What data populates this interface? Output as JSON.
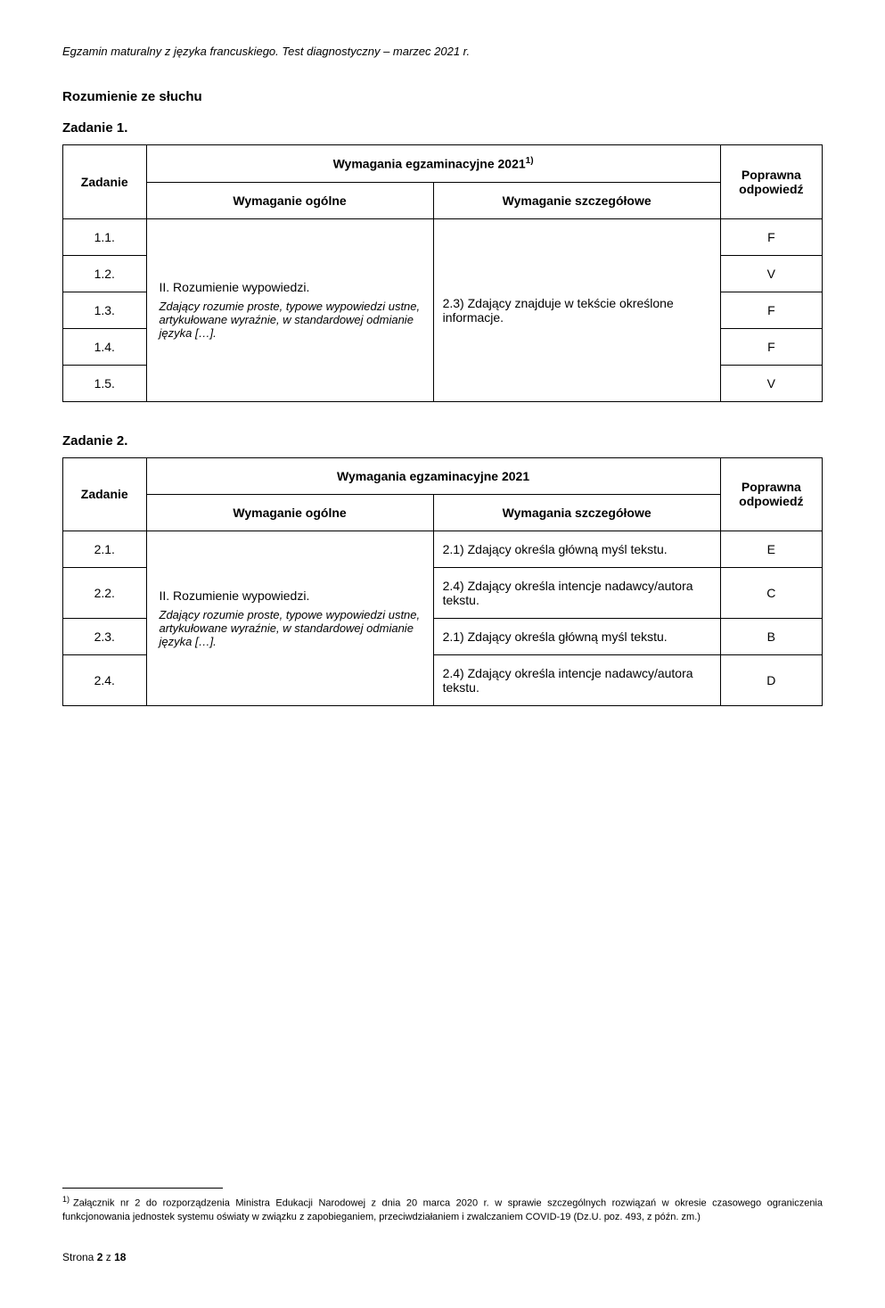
{
  "header_italic": "Egzamin maturalny z języka francuskiego. Test diagnostyczny – marzec 2021 r.",
  "section_title": "Rozumienie ze słuchu",
  "task1": {
    "title": "Zadanie 1.",
    "head_zadanie": "Zadanie",
    "head_wymagania": "Wymagania egzaminacyjne 2021",
    "head_wymagania_sup": "1)",
    "head_poprawna": "Poprawna odpowiedź",
    "head_ogolne": "Wymaganie ogólne",
    "head_szczeg": "Wymaganie szczegółowe",
    "ogolne_main": "II. Rozumienie wypowiedzi.",
    "ogolne_italic": "Zdający rozumie proste, typowe wypowiedzi ustne, artykułowane wyraźnie, w standardowej odmianie języka […].",
    "szczeg": "2.3) Zdający znajduje w tekście określone informacje.",
    "rows": [
      {
        "num": "1.1.",
        "ans": "F"
      },
      {
        "num": "1.2.",
        "ans": "V"
      },
      {
        "num": "1.3.",
        "ans": "F"
      },
      {
        "num": "1.4.",
        "ans": "F"
      },
      {
        "num": "1.5.",
        "ans": "V"
      }
    ]
  },
  "task2": {
    "title": "Zadanie 2.",
    "head_zadanie": "Zadanie",
    "head_wymagania": "Wymagania egzaminacyjne 2021",
    "head_poprawna": "Poprawna odpowiedź",
    "head_ogolne": "Wymaganie ogólne",
    "head_szczeg": "Wymagania szczegółowe",
    "ogolne_main": "II. Rozumienie wypowiedzi.",
    "ogolne_italic": "Zdający rozumie proste, typowe wypowiedzi ustne, artykułowane wyraźnie, w standardowej odmianie języka […].",
    "rows": [
      {
        "num": "2.1.",
        "szczeg": "2.1) Zdający określa główną myśl tekstu.",
        "ans": "E"
      },
      {
        "num": "2.2.",
        "szczeg": "2.4) Zdający określa intencje nadawcy/autora tekstu.",
        "ans": "C"
      },
      {
        "num": "2.3.",
        "szczeg": "2.1) Zdający określa główną myśl tekstu.",
        "ans": "B"
      },
      {
        "num": "2.4.",
        "szczeg": "2.4) Zdający określa intencje nadawcy/autora tekstu.",
        "ans": "D"
      }
    ]
  },
  "footnote": {
    "num": "1)",
    "text": "Załącznik nr 2 do rozporządzenia Ministra Edukacji Narodowej z dnia 20 marca 2020 r. w sprawie szczególnych rozwiązań w okresie czasowego ograniczenia funkcjonowania jednostek systemu oświaty w związku z zapobieganiem, przeciwdziałaniem i zwalczaniem COVID-19 (Dz.U. poz. 493, z późn. zm.)"
  },
  "page_footer_a": "Strona ",
  "page_footer_b": "2",
  "page_footer_c": " z ",
  "page_footer_d": "18"
}
